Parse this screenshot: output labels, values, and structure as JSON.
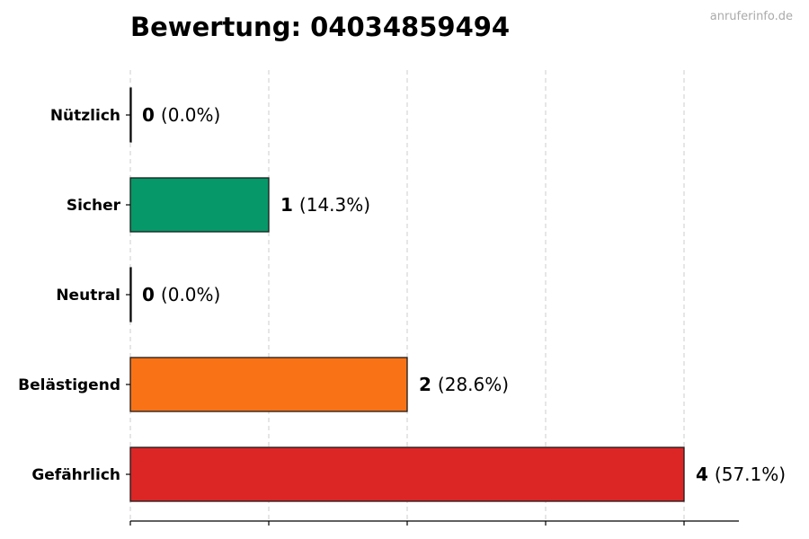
{
  "chart_data": {
    "type": "bar",
    "orientation": "horizontal",
    "title": "Bewertung: 04034859494",
    "watermark": "anruferinfo.de",
    "categories": [
      "Nützlich",
      "Sicher",
      "Neutral",
      "Belästigend",
      "Gefährlich"
    ],
    "values": [
      0,
      1,
      0,
      2,
      4
    ],
    "percent_labels": [
      "(0.0%)",
      "(14.3%)",
      "(0.0%)",
      "(28.6%)",
      "(57.1%)"
    ],
    "colors": [
      "#1a73c8",
      "#069868",
      "#9e9e9e",
      "#f97316",
      "#dc2626"
    ],
    "xlim": [
      0,
      4.4
    ],
    "grid": true
  }
}
